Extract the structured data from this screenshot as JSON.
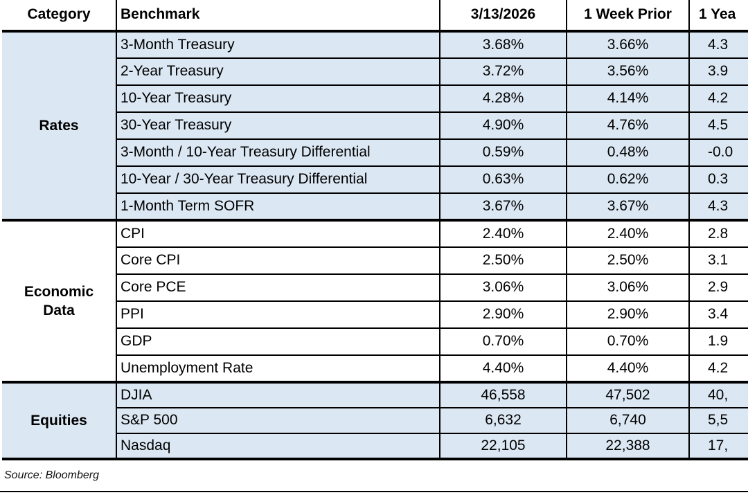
{
  "colors": {
    "row_shade": "#DBE7F3",
    "border": "#000000",
    "text": "#000000"
  },
  "table": {
    "columns": [
      {
        "id": "category",
        "label": "Category",
        "clipped": false
      },
      {
        "id": "benchmark",
        "label": "Benchmark",
        "clipped": false
      },
      {
        "id": "current",
        "label": "3/13/2026",
        "clipped": false
      },
      {
        "id": "week_prior",
        "label": "1 Week Prior",
        "clipped": false
      },
      {
        "id": "year_prior",
        "label": "1 Yea",
        "clipped": true
      }
    ],
    "sections": [
      {
        "category": "Rates",
        "shaded": true,
        "rows": [
          {
            "benchmark": "3-Month Treasury",
            "current": "3.68%",
            "week_prior": "3.66%",
            "year_prior": "4.3"
          },
          {
            "benchmark": "2-Year Treasury",
            "current": "3.72%",
            "week_prior": "3.56%",
            "year_prior": "3.9"
          },
          {
            "benchmark": "10-Year Treasury",
            "current": "4.28%",
            "week_prior": "4.14%",
            "year_prior": "4.2"
          },
          {
            "benchmark": "30-Year Treasury",
            "current": "4.90%",
            "week_prior": "4.76%",
            "year_prior": "4.5"
          },
          {
            "benchmark": "3-Month / 10-Year Treasury Differential",
            "current": "0.59%",
            "week_prior": "0.48%",
            "year_prior": "-0.0"
          },
          {
            "benchmark": "10-Year / 30-Year Treasury Differential",
            "current": "0.63%",
            "week_prior": "0.62%",
            "year_prior": "0.3"
          },
          {
            "benchmark": "1-Month Term SOFR",
            "current": "3.67%",
            "week_prior": "3.67%",
            "year_prior": "4.3"
          }
        ]
      },
      {
        "category": "Economic Data",
        "shaded": false,
        "rows": [
          {
            "benchmark": "CPI",
            "current": "2.40%",
            "week_prior": "2.40%",
            "year_prior": "2.8"
          },
          {
            "benchmark": "Core CPI",
            "current": "2.50%",
            "week_prior": "2.50%",
            "year_prior": "3.1"
          },
          {
            "benchmark": "Core PCE",
            "current": "3.06%",
            "week_prior": "3.06%",
            "year_prior": "2.9"
          },
          {
            "benchmark": "PPI",
            "current": "2.90%",
            "week_prior": "2.90%",
            "year_prior": "3.4"
          },
          {
            "benchmark": "GDP",
            "current": "0.70%",
            "week_prior": "0.70%",
            "year_prior": "1.9"
          },
          {
            "benchmark": "Unemployment Rate",
            "current": "4.40%",
            "week_prior": "4.40%",
            "year_prior": "4.2"
          }
        ]
      },
      {
        "category": "Equities",
        "shaded": true,
        "rows": [
          {
            "benchmark": "DJIA",
            "current": "46,558",
            "week_prior": "47,502",
            "year_prior": "40,"
          },
          {
            "benchmark": "S&P 500",
            "current": "6,632",
            "week_prior": "6,740",
            "year_prior": "5,5"
          },
          {
            "benchmark": "Nasdaq",
            "current": "22,105",
            "week_prior": "22,388",
            "year_prior": "17,"
          }
        ]
      }
    ]
  },
  "footer": {
    "source": "Source: Bloomberg"
  },
  "chart_data": {
    "type": "table",
    "columns": [
      "Category",
      "Benchmark",
      "3/13/2026",
      "1 Week Prior",
      "1 Yea"
    ],
    "rows": [
      [
        "Rates",
        "3-Month Treasury",
        "3.68%",
        "3.66%",
        "4.3"
      ],
      [
        "Rates",
        "2-Year Treasury",
        "3.72%",
        "3.56%",
        "3.9"
      ],
      [
        "Rates",
        "10-Year Treasury",
        "4.28%",
        "4.14%",
        "4.2"
      ],
      [
        "Rates",
        "30-Year Treasury",
        "4.90%",
        "4.76%",
        "4.5"
      ],
      [
        "Rates",
        "3-Month / 10-Year Treasury Differential",
        "0.59%",
        "0.48%",
        "-0.0"
      ],
      [
        "Rates",
        "10-Year / 30-Year Treasury Differential",
        "0.63%",
        "0.62%",
        "0.3"
      ],
      [
        "Rates",
        "1-Month Term SOFR",
        "3.67%",
        "3.67%",
        "4.3"
      ],
      [
        "Economic Data",
        "CPI",
        "2.40%",
        "2.40%",
        "2.8"
      ],
      [
        "Economic Data",
        "Core CPI",
        "2.50%",
        "2.50%",
        "3.1"
      ],
      [
        "Economic Data",
        "Core PCE",
        "3.06%",
        "3.06%",
        "2.9"
      ],
      [
        "Economic Data",
        "PPI",
        "2.90%",
        "2.90%",
        "3.4"
      ],
      [
        "Economic Data",
        "GDP",
        "0.70%",
        "0.70%",
        "1.9"
      ],
      [
        "Economic Data",
        "Unemployment Rate",
        "4.40%",
        "4.40%",
        "4.2"
      ],
      [
        "Equities",
        "DJIA",
        "46,558",
        "47,502",
        "40,"
      ],
      [
        "Equities",
        "S&P 500",
        "6,632",
        "6,740",
        "5,5"
      ],
      [
        "Equities",
        "Nasdaq",
        "22,105",
        "22,388",
        "17,"
      ]
    ],
    "title": "",
    "notes": "Last column is clipped at the right edge of the screenshot; only partial header and values are visible."
  }
}
